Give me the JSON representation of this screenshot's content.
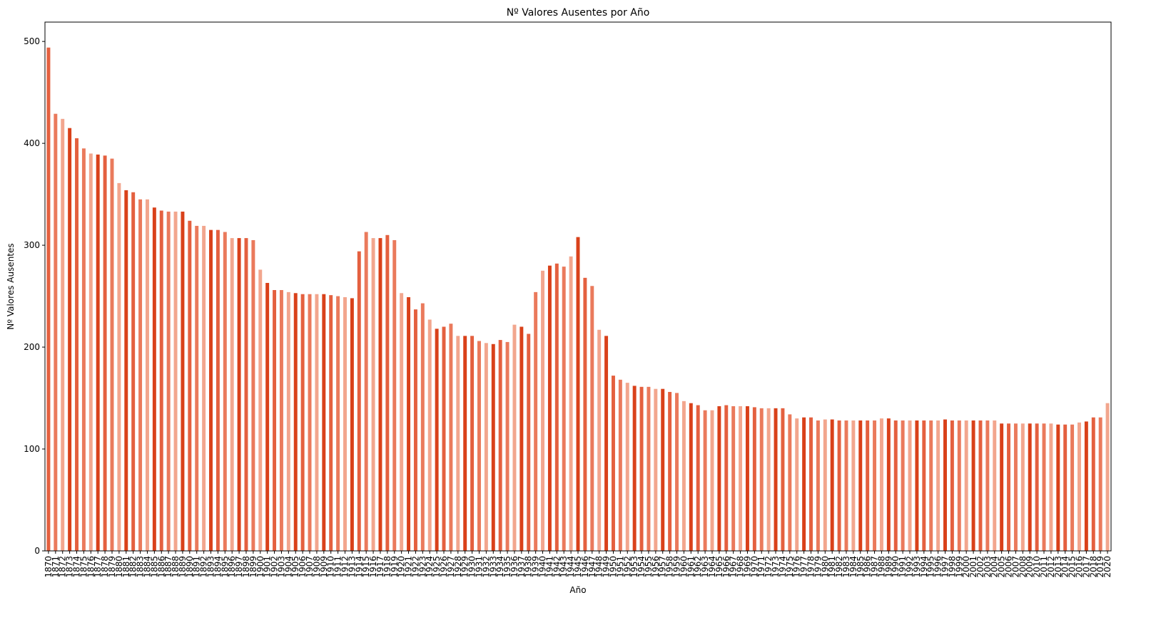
{
  "chart_data": {
    "type": "bar",
    "title": "Nº Valores Ausentes por Año",
    "xlabel": "Año",
    "ylabel": "Nº Valores Ausentes",
    "categories": [
      "1870",
      "1871",
      "1872",
      "1873",
      "1874",
      "1875",
      "1876",
      "1877",
      "1878",
      "1879",
      "1880",
      "1881",
      "1882",
      "1883",
      "1884",
      "1885",
      "1886",
      "1887",
      "1888",
      "1889",
      "1890",
      "1891",
      "1892",
      "1893",
      "1894",
      "1895",
      "1896",
      "1897",
      "1898",
      "1899",
      "1900",
      "1901",
      "1902",
      "1903",
      "1904",
      "1905",
      "1906",
      "1907",
      "1908",
      "1909",
      "1910",
      "1911",
      "1912",
      "1913",
      "1914",
      "1915",
      "1916",
      "1917",
      "1918",
      "1919",
      "1920",
      "1921",
      "1922",
      "1923",
      "1924",
      "1925",
      "1926",
      "1927",
      "1928",
      "1929",
      "1930",
      "1931",
      "1932",
      "1933",
      "1934",
      "1935",
      "1936",
      "1937",
      "1938",
      "1939",
      "1940",
      "1941",
      "1942",
      "1943",
      "1944",
      "1945",
      "1946",
      "1947",
      "1948",
      "1949",
      "1950",
      "1951",
      "1952",
      "1953",
      "1954",
      "1955",
      "1956",
      "1957",
      "1958",
      "1959",
      "1960",
      "1961",
      "1962",
      "1963",
      "1964",
      "1965",
      "1966",
      "1967",
      "1968",
      "1969",
      "1970",
      "1971",
      "1972",
      "1973",
      "1974",
      "1975",
      "1976",
      "1977",
      "1978",
      "1979",
      "1980",
      "1981",
      "1982",
      "1983",
      "1984",
      "1985",
      "1986",
      "1987",
      "1988",
      "1989",
      "1990",
      "1991",
      "1992",
      "1993",
      "1994",
      "1995",
      "1996",
      "1997",
      "1998",
      "1999",
      "2000",
      "2001",
      "2002",
      "2003",
      "2004",
      "2005",
      "2006",
      "2007",
      "2008",
      "2009",
      "2010",
      "2011",
      "2012",
      "2013",
      "2014",
      "2015",
      "2016",
      "2017",
      "2018",
      "2019",
      "2020"
    ],
    "values": [
      494,
      429,
      424,
      415,
      405,
      395,
      390,
      389,
      388,
      385,
      361,
      354,
      352,
      345,
      345,
      337,
      334,
      333,
      333,
      333,
      324,
      319,
      319,
      315,
      315,
      313,
      307,
      307,
      307,
      305,
      276,
      263,
      256,
      256,
      254,
      253,
      252,
      252,
      252,
      252,
      251,
      250,
      249,
      248,
      294,
      313,
      307,
      307,
      310,
      305,
      253,
      249,
      237,
      243,
      227,
      218,
      220,
      223,
      211,
      211,
      211,
      206,
      204,
      203,
      207,
      205,
      222,
      220,
      213,
      254,
      275,
      280,
      282,
      279,
      289,
      308,
      268,
      260,
      217,
      211,
      172,
      168,
      165,
      162,
      161,
      161,
      159,
      159,
      156,
      155,
      147,
      145,
      143,
      138,
      138,
      142,
      143,
      142,
      142,
      142,
      141,
      140,
      140,
      140,
      140,
      134,
      130,
      131,
      131,
      128,
      129,
      129,
      128,
      128,
      128,
      128,
      128,
      128,
      130,
      130,
      128,
      128,
      128,
      128,
      128,
      128,
      128,
      129,
      128,
      128,
      128,
      128,
      128,
      128,
      128,
      125,
      125,
      125,
      125,
      125,
      125,
      125,
      125,
      124,
      124,
      124,
      126,
      127,
      131,
      131,
      145
    ],
    "colors": [
      "#e4603f",
      "#ea7a5c",
      "#f2a68e",
      "#d9411a"
    ],
    "ylim": [
      0,
      519
    ],
    "yticks": [
      0,
      100,
      200,
      300,
      400,
      500
    ]
  }
}
